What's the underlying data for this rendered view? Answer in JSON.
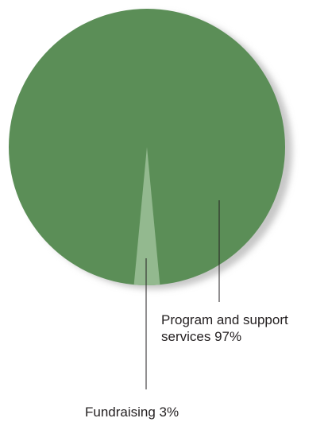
{
  "chart_data": {
    "type": "pie",
    "title": "",
    "slices": [
      {
        "name": "Program and support services",
        "label_lines": [
          "Program and support",
          "services 97%"
        ],
        "value": 97,
        "color": "#5b8e57"
      },
      {
        "name": "Fundraising",
        "label_lines": [
          "Fundraising 3%"
        ],
        "value": 3,
        "color": "#93b98f"
      }
    ],
    "colors": {
      "shadow": "#c7c7c7",
      "leader_line": "#231f20",
      "label_text": "#231f20"
    }
  }
}
